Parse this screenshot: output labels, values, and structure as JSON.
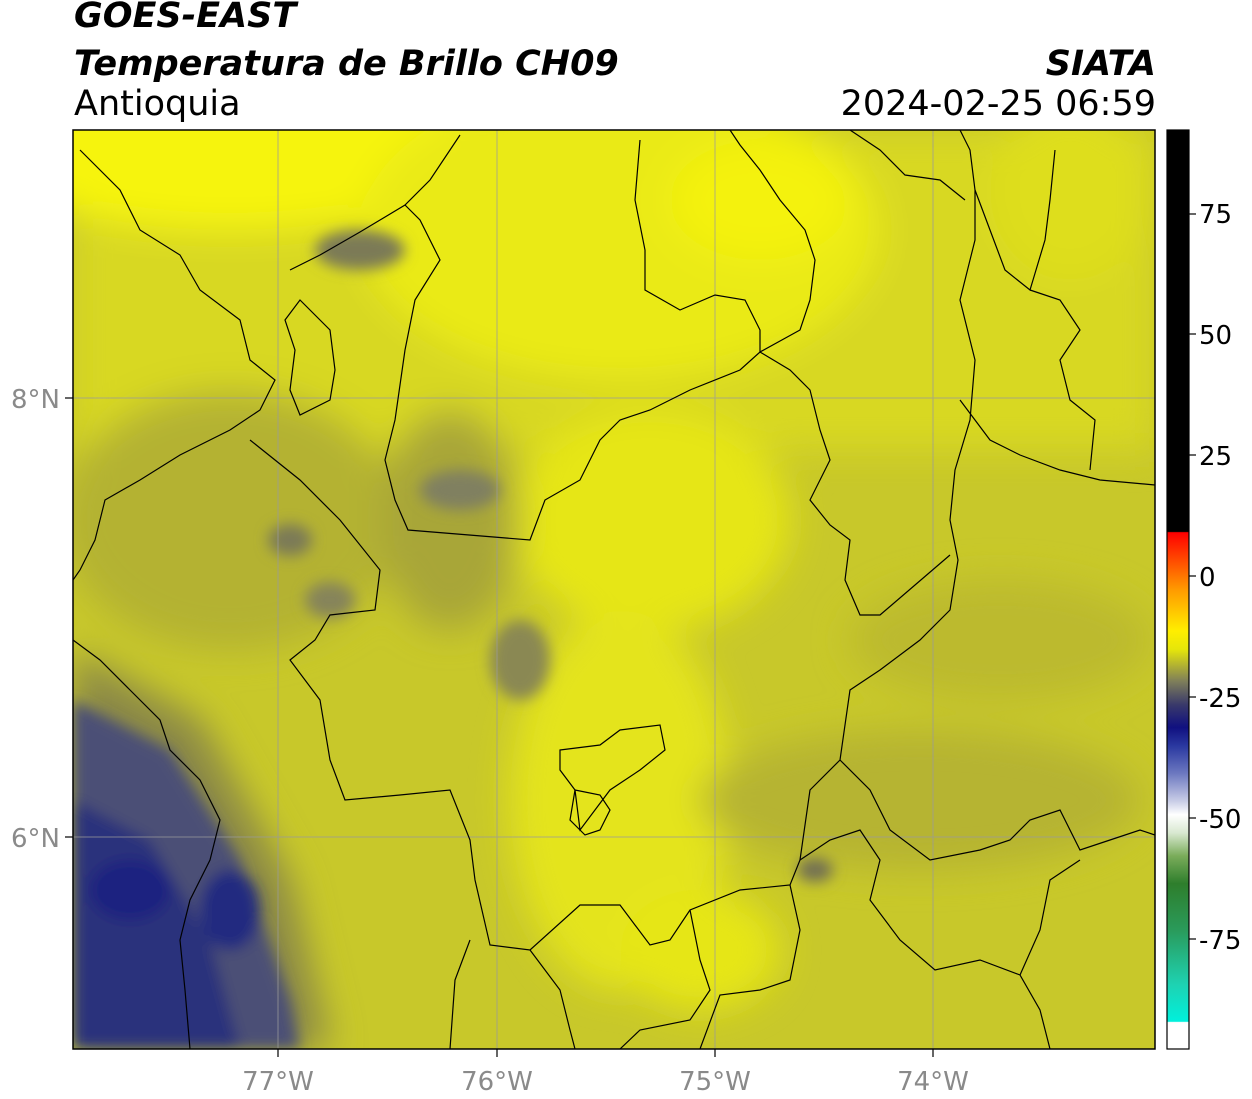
{
  "header": {
    "satellite": "GOES-EAST",
    "product": "Temperatura de Brillo CH09",
    "brand": "SIATA",
    "region": "Antioquia",
    "datetime": "2024-02-25 06:59"
  },
  "map": {
    "lon_range": [
      -77.95,
      -73.0
    ],
    "lat_range": [
      5.0,
      9.2
    ],
    "lon_ticks": [
      {
        "value": -77,
        "label": "77°W"
      },
      {
        "value": -76,
        "label": "76°W"
      },
      {
        "value": -75,
        "label": "75°W"
      },
      {
        "value": -74,
        "label": "74°W"
      }
    ],
    "lat_ticks": [
      {
        "value": 8,
        "label": "8°N"
      },
      {
        "value": 6,
        "label": "6°N"
      }
    ],
    "grid": true,
    "colors": {
      "bright_yellow": "#f4f20a",
      "yellow": "#e2e21a",
      "olive": "#c6c626",
      "dark_olive": "#a6a43a",
      "slate": "#6c6c62",
      "navy": "#2c327c",
      "deep_navy": "#1a2380"
    }
  },
  "colorbar": {
    "range": [
      -95,
      91
    ],
    "ticks": [
      {
        "value": 75,
        "label": "75"
      },
      {
        "value": 50,
        "label": "50"
      },
      {
        "value": 25,
        "label": "25"
      },
      {
        "value": 0,
        "label": "0"
      },
      {
        "value": -25,
        "label": "-25"
      },
      {
        "value": -50,
        "label": "-50"
      },
      {
        "value": -75,
        "label": "-75"
      }
    ]
  }
}
